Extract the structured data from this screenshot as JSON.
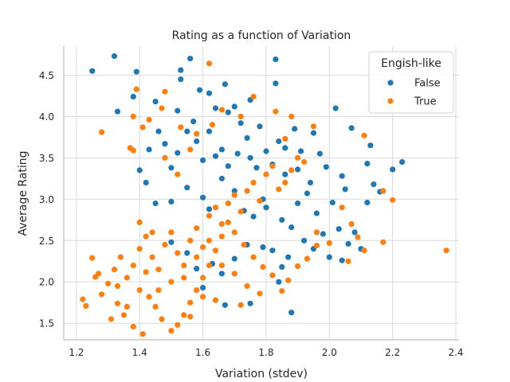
{
  "chart_data": {
    "type": "scatter",
    "title": "Rating as a function of Variation",
    "xlabel": "Variation (stdev)",
    "ylabel": "Average Rating",
    "xlim": [
      1.16,
      2.41
    ],
    "ylim": [
      1.3,
      4.85
    ],
    "xticks": [
      "1.2",
      "1.4",
      "1.6",
      "1.8",
      "2.0",
      "2.2",
      "2.4"
    ],
    "yticks": [
      "1.5",
      "2.0",
      "2.5",
      "3.0",
      "3.5",
      "4.0",
      "4.5"
    ],
    "grid": true,
    "legend": {
      "title": "Engish-like",
      "placement": "top-right",
      "entries": [
        "False",
        "True"
      ]
    },
    "series": [
      {
        "name": "False",
        "color": "#1f77b4",
        "points": [
          [
            1.25,
            4.55
          ],
          [
            1.32,
            4.73
          ],
          [
            1.39,
            4.54
          ],
          [
            1.38,
            4.24
          ],
          [
            1.33,
            4.06
          ],
          [
            1.56,
            4.7
          ],
          [
            1.53,
            4.56
          ],
          [
            1.83,
            4.69
          ],
          [
            1.83,
            4.4
          ],
          [
            1.67,
            4.39
          ],
          [
            1.53,
            4.45
          ],
          [
            1.59,
            4.32
          ],
          [
            1.62,
            4.28
          ],
          [
            1.45,
            4.18
          ],
          [
            1.52,
            4.07
          ],
          [
            1.7,
            4.12
          ],
          [
            1.75,
            4.2
          ],
          [
            1.95,
            3.8
          ],
          [
            2.02,
            4.1
          ],
          [
            2.07,
            3.86
          ],
          [
            2.13,
            3.65
          ],
          [
            2.14,
            3.18
          ],
          [
            2.16,
            3.09
          ],
          [
            2.2,
            3.36
          ],
          [
            2.23,
            3.45
          ],
          [
            2.12,
            3.43
          ],
          [
            2.12,
            2.96
          ],
          [
            2.05,
            3.12
          ],
          [
            2.04,
            3.28
          ],
          [
            1.99,
            3.39
          ],
          [
            1.97,
            3.55
          ],
          [
            1.94,
            3.2
          ],
          [
            1.89,
            3.85
          ],
          [
            1.91,
            3.58
          ],
          [
            1.86,
            3.62
          ],
          [
            1.84,
            3.7
          ],
          [
            1.82,
            3.42
          ],
          [
            1.77,
            3.38
          ],
          [
            1.79,
            3.0
          ],
          [
            1.75,
            3.5
          ],
          [
            1.71,
            3.55
          ],
          [
            1.68,
            3.4
          ],
          [
            1.66,
            3.6
          ],
          [
            1.64,
            3.52
          ],
          [
            1.6,
            3.47
          ],
          [
            1.58,
            3.7
          ],
          [
            1.55,
            3.82
          ],
          [
            1.52,
            3.56
          ],
          [
            1.5,
            3.38
          ],
          [
            1.48,
            3.67
          ],
          [
            1.46,
            3.82
          ],
          [
            1.43,
            3.6
          ],
          [
            1.4,
            3.35
          ],
          [
            1.42,
            3.2
          ],
          [
            1.45,
            2.95
          ],
          [
            1.5,
            2.97
          ],
          [
            1.55,
            3.14
          ],
          [
            1.6,
            3.02
          ],
          [
            1.62,
            2.88
          ],
          [
            1.66,
            3.25
          ],
          [
            1.7,
            3.1
          ],
          [
            1.73,
            2.86
          ],
          [
            1.76,
            2.79
          ],
          [
            1.8,
            2.9
          ],
          [
            1.85,
            2.75
          ],
          [
            1.88,
            2.66
          ],
          [
            1.9,
            2.95
          ],
          [
            1.93,
            3.07
          ],
          [
            1.96,
            2.83
          ],
          [
            1.98,
            2.58
          ],
          [
            2.01,
            2.96
          ],
          [
            2.03,
            2.64
          ],
          [
            2.06,
            2.46
          ],
          [
            2.08,
            2.6
          ],
          [
            2.1,
            2.4
          ],
          [
            2.04,
            2.26
          ],
          [
            2.0,
            2.3
          ],
          [
            1.95,
            2.4
          ],
          [
            1.92,
            2.5
          ],
          [
            1.87,
            2.3
          ],
          [
            1.85,
            2.18
          ],
          [
            1.82,
            2.38
          ],
          [
            1.79,
            2.42
          ],
          [
            1.74,
            2.45
          ],
          [
            1.7,
            2.28
          ],
          [
            1.66,
            2.1
          ],
          [
            1.63,
            2.22
          ],
          [
            1.58,
            2.16
          ],
          [
            1.55,
            2.35
          ],
          [
            1.5,
            2.48
          ],
          [
            1.84,
            2.0
          ],
          [
            1.88,
            1.63
          ],
          [
            1.67,
            1.72
          ],
          [
            1.75,
            1.74
          ],
          [
            1.6,
            1.93
          ],
          [
            1.72,
            3.92
          ],
          [
            1.78,
            3.88
          ],
          [
            1.62,
            3.82
          ],
          [
            1.57,
            3.94
          ],
          [
            1.64,
            4.1
          ],
          [
            1.68,
            4.05
          ],
          [
            1.74,
            3.74
          ],
          [
            1.8,
            3.58
          ],
          [
            1.86,
            3.3
          ],
          [
            1.9,
            3.36
          ]
        ]
      },
      {
        "name": "True",
        "color": "#ff7f0e",
        "points": [
          [
            1.62,
            4.64
          ],
          [
            1.39,
            4.33
          ],
          [
            1.48,
            4.3
          ],
          [
            1.28,
            3.81
          ],
          [
            1.38,
            4.0
          ],
          [
            1.37,
            3.62
          ],
          [
            1.38,
            3.59
          ],
          [
            1.41,
            3.87
          ],
          [
            1.43,
            3.96
          ],
          [
            1.47,
            4.1
          ],
          [
            1.53,
            3.87
          ],
          [
            1.58,
            3.79
          ],
          [
            1.63,
            3.9
          ],
          [
            1.66,
            4.08
          ],
          [
            1.72,
            4.0
          ],
          [
            1.76,
            4.24
          ],
          [
            1.83,
            4.06
          ],
          [
            1.88,
            4.0
          ],
          [
            1.86,
            3.73
          ],
          [
            1.95,
            3.88
          ],
          [
            2.11,
            3.77
          ],
          [
            2.17,
            3.1
          ],
          [
            2.2,
            2.99
          ],
          [
            2.17,
            2.48
          ],
          [
            2.37,
            2.38
          ],
          [
            2.11,
            2.38
          ],
          [
            2.06,
            2.25
          ],
          [
            2.09,
            2.54
          ],
          [
            2.07,
            2.7
          ],
          [
            2.04,
            2.9
          ],
          [
            2.0,
            2.47
          ],
          [
            1.96,
            2.44
          ],
          [
            1.93,
            2.28
          ],
          [
            1.9,
            2.19
          ],
          [
            1.87,
            2.02
          ],
          [
            1.85,
            1.89
          ],
          [
            1.82,
            2.08
          ],
          [
            1.79,
            2.18
          ],
          [
            1.76,
            2.3
          ],
          [
            1.73,
            2.45
          ],
          [
            1.7,
            2.6
          ],
          [
            1.68,
            2.72
          ],
          [
            1.66,
            2.55
          ],
          [
            1.64,
            2.38
          ],
          [
            1.62,
            2.2
          ],
          [
            1.6,
            2.05
          ],
          [
            1.58,
            1.9
          ],
          [
            1.56,
            1.75
          ],
          [
            1.54,
            1.6
          ],
          [
            1.52,
            1.48
          ],
          [
            1.5,
            1.41
          ],
          [
            1.47,
            1.55
          ],
          [
            1.45,
            1.7
          ],
          [
            1.43,
            1.82
          ],
          [
            1.41,
            1.37
          ],
          [
            1.38,
            1.46
          ],
          [
            1.35,
            1.6
          ],
          [
            1.33,
            1.74
          ],
          [
            1.31,
            1.55
          ],
          [
            1.28,
            1.85
          ],
          [
            1.26,
            2.06
          ],
          [
            1.25,
            2.29
          ],
          [
            1.22,
            1.79
          ],
          [
            1.23,
            1.71
          ],
          [
            1.27,
            2.1
          ],
          [
            1.3,
            1.98
          ],
          [
            1.32,
            2.15
          ],
          [
            1.34,
            2.3
          ],
          [
            1.36,
            2.05
          ],
          [
            1.38,
            2.2
          ],
          [
            1.4,
            2.4
          ],
          [
            1.42,
            2.55
          ],
          [
            1.44,
            2.3
          ],
          [
            1.46,
            2.15
          ],
          [
            1.48,
            2.45
          ],
          [
            1.5,
            2.6
          ],
          [
            1.52,
            2.35
          ],
          [
            1.54,
            2.2
          ],
          [
            1.56,
            2.5
          ],
          [
            1.58,
            2.65
          ],
          [
            1.6,
            2.42
          ],
          [
            1.62,
            2.8
          ],
          [
            1.64,
            2.9
          ],
          [
            1.66,
            2.7
          ],
          [
            1.68,
            2.95
          ],
          [
            1.7,
            3.05
          ],
          [
            1.72,
            2.85
          ],
          [
            1.74,
            3.1
          ],
          [
            1.76,
            3.2
          ],
          [
            1.78,
            2.98
          ],
          [
            1.8,
            3.3
          ],
          [
            1.82,
            3.4
          ],
          [
            1.84,
            3.12
          ],
          [
            1.86,
            3.2
          ],
          [
            1.88,
            3.35
          ],
          [
            1.9,
            3.5
          ],
          [
            1.92,
            3.45
          ],
          [
            1.48,
            3.5
          ],
          [
            1.52,
            3.3
          ],
          [
            1.56,
            3.6
          ],
          [
            1.4,
            2.72
          ],
          [
            1.42,
            2.12
          ],
          [
            1.46,
            1.9
          ],
          [
            1.5,
            2.0
          ],
          [
            1.54,
            2.05
          ],
          [
            1.58,
            2.3
          ],
          [
            1.62,
            2.5
          ],
          [
            1.66,
            2.2
          ],
          [
            1.7,
            2.1
          ],
          [
            1.74,
            1.95
          ],
          [
            1.78,
            1.86
          ],
          [
            1.72,
            1.72
          ],
          [
            1.64,
            1.78
          ],
          [
            1.56,
            1.58
          ],
          [
            1.6,
            1.82
          ],
          [
            1.36,
            1.7
          ],
          [
            1.33,
            1.95
          ],
          [
            1.4,
            1.9
          ],
          [
            1.44,
            2.6
          ],
          [
            1.96,
            2.6
          ]
        ]
      }
    ]
  }
}
